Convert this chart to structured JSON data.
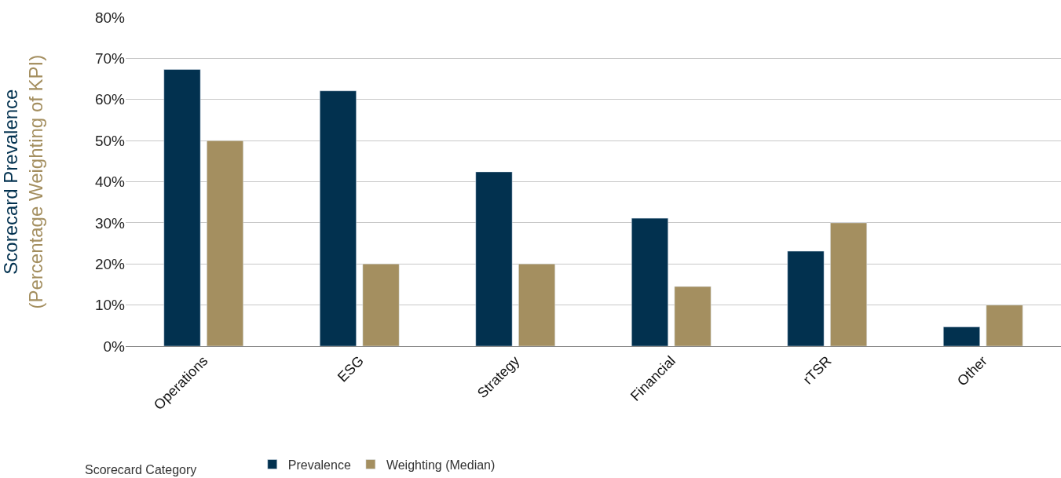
{
  "chart_data": {
    "type": "bar",
    "xlabel": "Scorecard Category",
    "ylabel": "Scorecard Prevalence\n(Percentage Weighting of KPI)",
    "categories": [
      "Operations",
      "ESG",
      "Strategy",
      "Financial",
      "rTSR",
      "Other"
    ],
    "series": [
      {
        "name": "Prevalence",
        "color": "#02314f",
        "values": [
          67.3,
          62.1,
          42.4,
          31.1,
          23.1,
          4.7
        ]
      },
      {
        "name": "Weighting (Median)",
        "color": "#a48f60",
        "values": [
          50,
          20,
          20,
          14.5,
          30,
          10
        ]
      }
    ],
    "ylim": [
      0,
      80
    ],
    "yticks": [
      {
        "value": 0,
        "label": "0%"
      },
      {
        "value": 10,
        "label": "10%"
      },
      {
        "value": 20,
        "label": "20%"
      },
      {
        "value": 30,
        "label": "30%"
      },
      {
        "value": 40,
        "label": "40%"
      },
      {
        "value": 50,
        "label": "50%"
      },
      {
        "value": 60,
        "label": "60%"
      },
      {
        "value": 70,
        "label": "70%"
      },
      {
        "value": 80,
        "label": "80%"
      }
    ],
    "grid": "y",
    "legend": "bottom"
  }
}
